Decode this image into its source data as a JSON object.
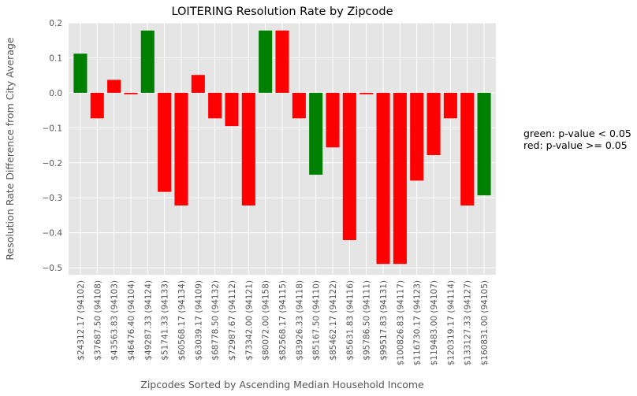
{
  "chart_data": {
    "type": "bar",
    "title": "LOITERING Resolution Rate by Zipcode",
    "xlabel": "Zipcodes Sorted by Ascending Median Household Income",
    "ylabel": "Resolution Rate Difference from City Average",
    "ylim": [
      -0.52,
      0.2
    ],
    "yticks": [
      0.2,
      0.1,
      0.0,
      -0.1,
      -0.2,
      -0.3,
      -0.4,
      -0.5
    ],
    "ytick_labels": [
      "0.2",
      "0.1",
      "0.0",
      "−0.1",
      "−0.2",
      "−0.3",
      "−0.4",
      "−0.5"
    ],
    "grid": true,
    "categories": [
      "$24312.17 (94102)",
      "$37687.50 (94108)",
      "$43563.83 (94103)",
      "$46476.40 (94104)",
      "$49287.33 (94124)",
      "$51741.33 (94133)",
      "$60568.17 (94134)",
      "$63039.17 (94109)",
      "$68778.50 (94132)",
      "$72987.67 (94112)",
      "$73342.00 (94121)",
      "$80072.00 (94158)",
      "$82568.17 (94115)",
      "$83926.33 (94118)",
      "$85167.50 (94110)",
      "$85462.17 (94122)",
      "$85631.83 (94116)",
      "$95786.50 (94111)",
      "$99517.83 (94131)",
      "$100826.83 (94117)",
      "$116730.17 (94123)",
      "$119483.00 (94107)",
      "$120319.17 (94114)",
      "$133127.33 (94127)",
      "$160831.00 (94105)"
    ],
    "values": [
      0.112,
      -0.073,
      0.037,
      -0.004,
      0.178,
      -0.283,
      -0.322,
      0.051,
      -0.073,
      -0.095,
      -0.322,
      0.178,
      0.178,
      -0.073,
      -0.234,
      -0.156,
      -0.421,
      -0.004,
      -0.489,
      -0.489,
      -0.251,
      -0.178,
      -0.073,
      -0.322,
      -0.293
    ],
    "significant": [
      true,
      false,
      false,
      false,
      true,
      false,
      false,
      false,
      false,
      false,
      false,
      true,
      false,
      false,
      true,
      false,
      false,
      false,
      false,
      false,
      false,
      false,
      false,
      false,
      true
    ],
    "colors": {
      "significant": "#008000",
      "not_significant": "#ff0000",
      "axes_background": "#e5e5e5",
      "grid": "#ffffff",
      "tick_text": "#555555",
      "label_text": "#555555",
      "title_text": "#000000"
    },
    "annotation": {
      "line1": "green: p-value < 0.05",
      "line2": "red: p-value >= 0.05"
    }
  }
}
